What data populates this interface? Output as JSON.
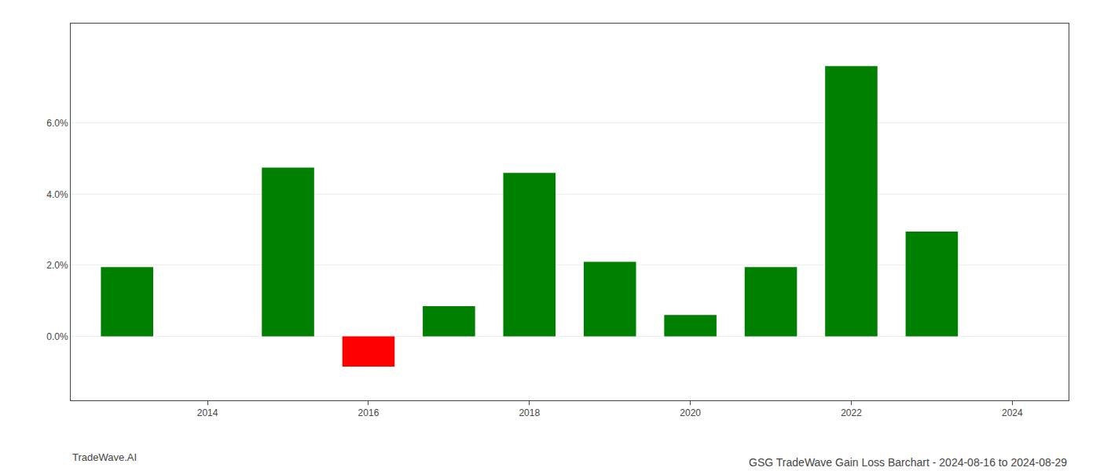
{
  "chart_data": {
    "type": "bar",
    "title": "GSG TradeWave Gain Loss Barchart - 2024-08-16 to 2024-08-29",
    "annotations": [
      "TradeWave.AI"
    ],
    "x": [
      2013,
      2015,
      2016,
      2017,
      2018,
      2019,
      2020,
      2021,
      2022,
      2023
    ],
    "values": [
      0.0195,
      0.0475,
      -0.0085,
      0.0085,
      0.046,
      0.021,
      0.006,
      0.0195,
      0.076,
      0.0295
    ],
    "colors": [
      "#008000",
      "#008000",
      "#ff0000",
      "#008000",
      "#008000",
      "#008000",
      "#008000",
      "#008000",
      "#008000",
      "#008000"
    ],
    "xlim": [
      2012.3,
      2024.7
    ],
    "xticks": [
      2014,
      2016,
      2018,
      2020,
      2022,
      2024
    ],
    "ylim": [
      -0.018,
      0.088
    ],
    "yticks": [
      {
        "value": 0.0,
        "label": "0.0%"
      },
      {
        "value": 0.02,
        "label": "2.0%"
      },
      {
        "value": 0.04,
        "label": "4.0%"
      },
      {
        "value": 0.06,
        "label": "6.0%"
      }
    ],
    "grid": true
  }
}
